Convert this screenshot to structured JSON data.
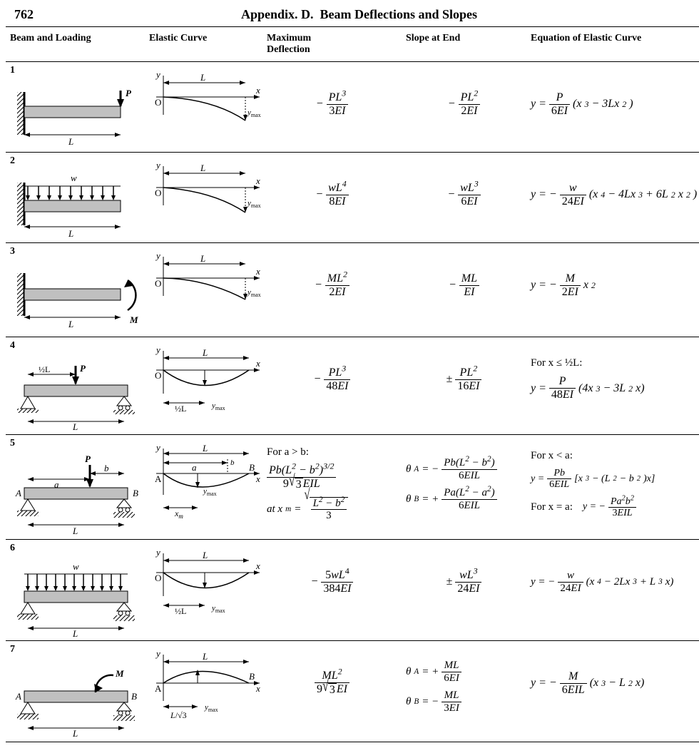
{
  "page": {
    "number": "762",
    "appendix": "Appendix. D.",
    "title": "Beam Deflections and Slopes"
  },
  "columns": {
    "beam": "Beam and Loading",
    "curve": "Elastic Curve",
    "defl": "Maximum Deflection",
    "slope": "Slope at End",
    "eqn": "Equation of Elastic Curve"
  },
  "rows": [
    "1",
    "2",
    "3",
    "4",
    "5",
    "6",
    "7"
  ],
  "style": {
    "background_color": "#ffffff",
    "rule_color": "#000000",
    "text_color": "#000000",
    "font_family": "Times New Roman",
    "header_fontsize_pt": 14,
    "cell_fontsize_pt": 12,
    "svg_stroke_width": 1.5,
    "hatch_fill": "#bdbdbd"
  },
  "labels": {
    "L": "L",
    "P": "P",
    "w": "w",
    "M": "M",
    "a": "a",
    "b": "b",
    "A": "A",
    "B": "B",
    "x": "x",
    "y": "y",
    "O": "O",
    "ymax": "y_max",
    "ymax_html": "y<sub>max</sub>",
    "xm": "x_m",
    "halfL": "½L",
    "L_over_sqrt3": "L/√3"
  },
  "formulas": {
    "row1": {
      "defl_html": "− <span class='frac'><span class='num'>PL<sup>3</sup></span><span class='den rm'>3<i>EI</i></span></span>",
      "slope_html": "− <span class='frac'><span class='num'>PL<sup>2</sup></span><span class='den rm'>2<i>EI</i></span></span>",
      "eqn_html": "y = <span class='frac'><span class='num'>P</span><span class='den rm'>6<i>EI</i></span></span> (x<sup>3</sup> − 3Lx<sup>2</sup>)"
    },
    "row2": {
      "defl_html": "− <span class='frac'><span class='num'>wL<sup>4</sup></span><span class='den rm'>8<i>EI</i></span></span>",
      "slope_html": "− <span class='frac'><span class='num'>wL<sup>3</sup></span><span class='den rm'>6<i>EI</i></span></span>",
      "eqn_html": "y = − <span class='frac'><span class='num'>w</span><span class='den rm'>24<i>EI</i></span></span> (x<sup>4</sup> − 4Lx<sup>3</sup> + 6L<sup>2</sup>x<sup>2</sup>)"
    },
    "row3": {
      "defl_html": "− <span class='frac'><span class='num'>ML<sup>2</sup></span><span class='den rm'>2<i>EI</i></span></span>",
      "slope_html": "− <span class='frac'><span class='num'>ML</span><span class='den'><i>EI</i></span></span>",
      "eqn_html": "y = − <span class='frac'><span class='num'>M</span><span class='den rm'>2<i>EI</i></span></span> x<sup>2</sup>"
    },
    "row4": {
      "defl_html": "− <span class='frac'><span class='num'>PL<sup>3</sup></span><span class='den rm'>48<i>EI</i></span></span>",
      "slope_html": "± <span class='frac'><span class='num'>PL<sup>2</sup></span><span class='den rm'>16<i>EI</i></span></span>",
      "eqn_prefix": "For x ≤ ½L:",
      "eqn_html": "y = <span class='frac'><span class='num'>P</span><span class='den rm'>48<i>EI</i></span></span> (4x<sup>3</sup> − 3L<sup>2</sup>x)"
    },
    "row5": {
      "defl_prefix": "For a > b:",
      "defl_html1": "<span class='frac'><span class='num'>Pb(L<sup>2</sup> − b<sup>2</sup>)<sup>3/2</sup></span><span class='den rm'>9<span class='sqrt'><span class='radicand'>3</span></span><i>EIL</i></span></span>",
      "defl_html2": "at x<sub>m</sub> = <span class='sqrt'><span class='radicand'><span class='frac'><span class='num'>L<sup>2</sup> − b<sup>2</sup></span><span class='den rm'>3</span></span></span></span>",
      "slope_html1": "θ<sub>A</sub> = − <span class='frac'><span class='num'>Pb(L<sup>2</sup> − b<sup>2</sup>)</span><span class='den rm'>6<i>EIL</i></span></span>",
      "slope_html2": "θ<sub>B</sub> = + <span class='frac'><span class='num'>Pa(L<sup>2</sup> − a<sup>2</sup>)</span><span class='den rm'>6<i>EIL</i></span></span>",
      "eqn_prefix": "For x < a:",
      "eqn_html1": "y = <span class='frac'><span class='num'>Pb</span><span class='den rm'>6<i>EIL</i></span></span> [x<sup>3</sup> − (L<sup>2</sup> − b<sup>2</sup>)x]",
      "eqn_prefix2": "For x = a:",
      "eqn_html2": "y = − <span class='frac'><span class='num'>Pa<sup>2</sup>b<sup>2</sup></span><span class='den rm'>3<i>EIL</i></span></span>"
    },
    "row6": {
      "defl_html": "− <span class='frac'><span class='num rm'>5<i>wL</i><sup>4</sup></span><span class='den rm'>384<i>EI</i></span></span>",
      "slope_html": "± <span class='frac'><span class='num'>wL<sup>3</sup></span><span class='den rm'>24<i>EI</i></span></span>",
      "eqn_html": "y = − <span class='frac'><span class='num'>w</span><span class='den rm'>24<i>EI</i></span></span> (x<sup>4</sup> − 2Lx<sup>3</sup> + L<sup>3</sup>x)"
    },
    "row7": {
      "defl_html": "<span class='frac'><span class='num'>ML<sup>2</sup></span><span class='den rm'>9<span class='sqrt'><span class='radicand'>3</span></span><i>EI</i></span></span>",
      "slope_html1": "θ<sub>A</sub> = + <span class='frac'><span class='num'>ML</span><span class='den rm'>6<i>EI</i></span></span>",
      "slope_html2": "θ<sub>B</sub> = − <span class='frac'><span class='num'>ML</span><span class='den rm'>3<i>EI</i></span></span>",
      "eqn_html": "y = − <span class='frac'><span class='num'>M</span><span class='den rm'>6<i>EIL</i></span></span> (x<sup>3</sup> − L<sup>2</sup>x)"
    }
  }
}
